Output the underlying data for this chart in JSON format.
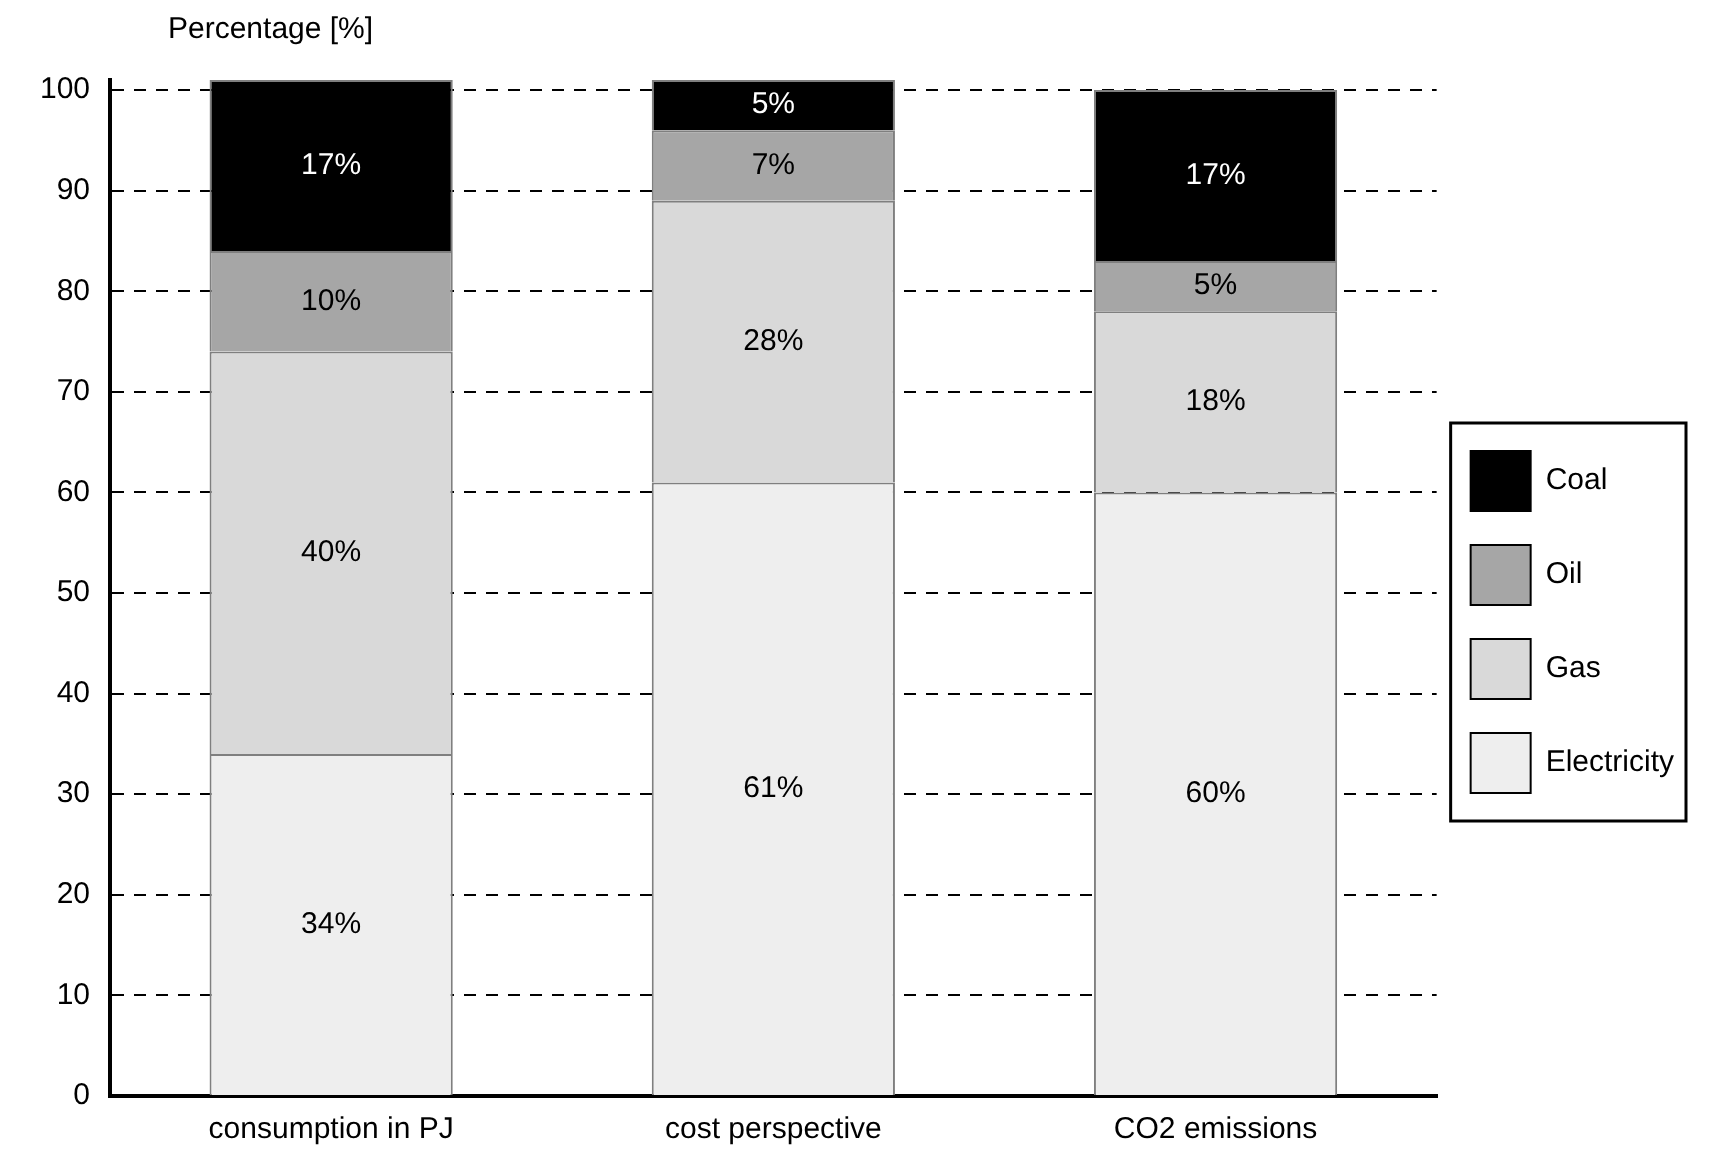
{
  "chart_data": {
    "type": "bar",
    "stacked": true,
    "ylabel": "Percentage [%]",
    "categories": [
      "consumption in PJ",
      "cost perspective",
      "CO2 emissions"
    ],
    "series": [
      {
        "name": "Electricity",
        "color": "#eeeeee",
        "values": [
          34,
          61,
          60
        ],
        "value_labels": [
          "34%",
          "61%",
          "60%"
        ]
      },
      {
        "name": "Gas",
        "color": "#d9d9d9",
        "values": [
          40,
          28,
          18
        ],
        "value_labels": [
          "40%",
          "28%",
          "18%"
        ]
      },
      {
        "name": "Oil",
        "color": "#a6a6a6",
        "values": [
          10,
          7,
          5
        ],
        "value_labels": [
          "10%",
          "7%",
          "5%"
        ]
      },
      {
        "name": "Coal",
        "color": "#000000",
        "values": [
          17,
          5,
          17
        ],
        "value_labels": [
          "17%",
          "5%",
          "17%"
        ]
      }
    ],
    "ylim": [
      0,
      101
    ],
    "yticks": [
      0,
      10,
      20,
      30,
      40,
      50,
      60,
      70,
      80,
      90,
      100
    ],
    "grid": "y",
    "legend": "right"
  }
}
